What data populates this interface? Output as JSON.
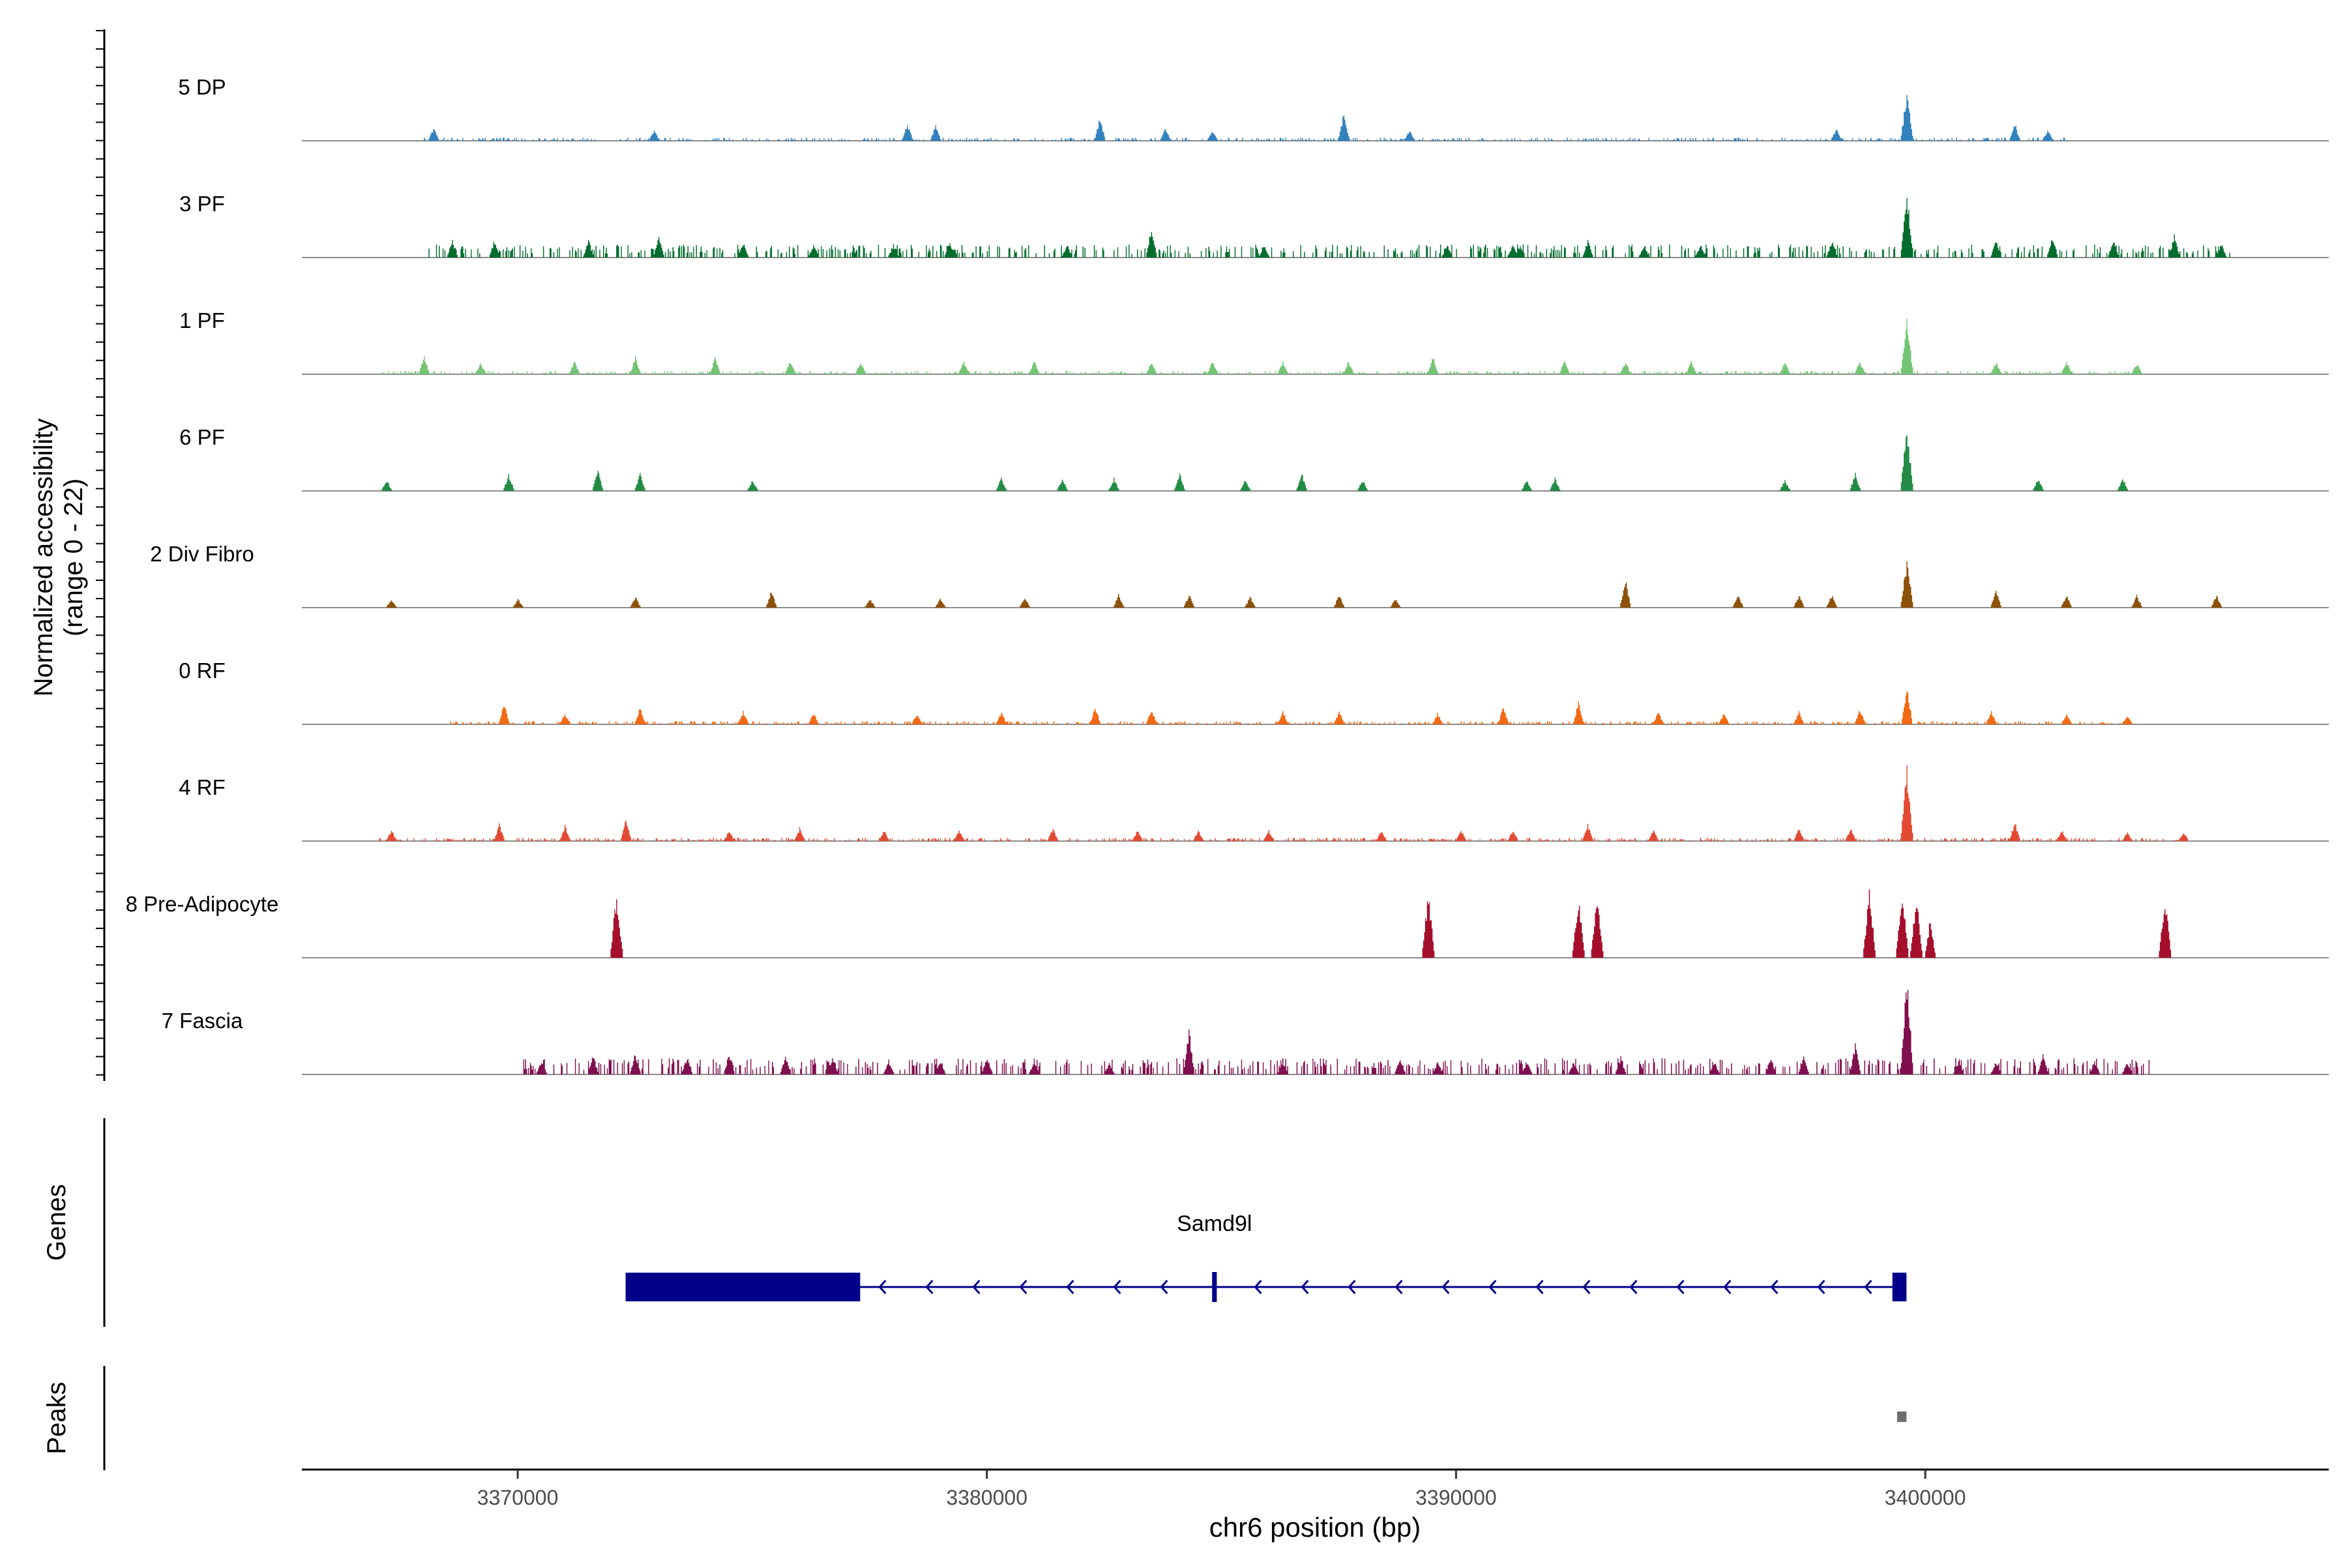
{
  "chart_data": {
    "type": "area",
    "title": "",
    "ylabel_line1": "Normalized accessibility",
    "ylabel_line2": "(range 0 - 22)",
    "xlabel": "chr6 position (bp)",
    "xlim": [
      3365400,
      3408600
    ],
    "ylim": [
      0,
      22
    ],
    "x_ticks": [
      3370000,
      3380000,
      3390000,
      3400000
    ],
    "x_tick_labels": [
      "3370000",
      "3380000",
      "3390000",
      "3400000"
    ],
    "tracks": [
      {
        "name": "5 DP",
        "color": "#3182bd",
        "baseline": 0.5,
        "start": 3368000,
        "end": 3403000,
        "peaks": [
          [
            3368200,
            3
          ],
          [
            3372900,
            2.5
          ],
          [
            3378300,
            4
          ],
          [
            3378900,
            3.5
          ],
          [
            3382400,
            5.5
          ],
          [
            3383800,
            3
          ],
          [
            3384800,
            2.5
          ],
          [
            3387600,
            6.5
          ],
          [
            3389000,
            2.5
          ],
          [
            3398100,
            3
          ],
          [
            3399600,
            11
          ],
          [
            3401900,
            4
          ],
          [
            3402600,
            2.5
          ]
        ]
      },
      {
        "name": "3 PF",
        "color": "#006d2c",
        "baseline": 2,
        "start": 3368000,
        "end": 3406500,
        "peaks": [
          [
            3368600,
            4
          ],
          [
            3369500,
            4
          ],
          [
            3371500,
            4
          ],
          [
            3373000,
            5
          ],
          [
            3374800,
            3.5
          ],
          [
            3376300,
            3
          ],
          [
            3378000,
            3
          ],
          [
            3379200,
            4
          ],
          [
            3381700,
            3
          ],
          [
            3383500,
            7
          ],
          [
            3385900,
            3
          ],
          [
            3389800,
            3
          ],
          [
            3391200,
            3
          ],
          [
            3392800,
            4
          ],
          [
            3394000,
            3
          ],
          [
            3395200,
            3
          ],
          [
            3398000,
            4
          ],
          [
            3399600,
            15
          ],
          [
            3401500,
            4
          ],
          [
            3402700,
            5
          ],
          [
            3404000,
            4
          ],
          [
            3405300,
            5
          ],
          [
            3406300,
            3
          ]
        ]
      },
      {
        "name": "1 PF",
        "color": "#74c476",
        "baseline": 0.5,
        "start": 3367000,
        "end": 3404700,
        "peaks": [
          [
            3368000,
            4
          ],
          [
            3369200,
            2.5
          ],
          [
            3371200,
            3
          ],
          [
            3372500,
            4
          ],
          [
            3374200,
            4
          ],
          [
            3375800,
            3
          ],
          [
            3377300,
            3
          ],
          [
            3379500,
            3
          ],
          [
            3381000,
            3
          ],
          [
            3383500,
            3
          ],
          [
            3384800,
            3
          ],
          [
            3386300,
            3
          ],
          [
            3387700,
            3
          ],
          [
            3389500,
            4
          ],
          [
            3392300,
            3
          ],
          [
            3393600,
            3
          ],
          [
            3395000,
            3
          ],
          [
            3397000,
            3
          ],
          [
            3398600,
            3
          ],
          [
            3399600,
            12
          ],
          [
            3401500,
            3
          ],
          [
            3403000,
            3
          ],
          [
            3404500,
            2.5
          ]
        ]
      },
      {
        "name": "6 PF",
        "color": "#238b45",
        "baseline": 0,
        "start": 3367000,
        "end": 3405000,
        "peaks": [
          [
            3367200,
            2.5
          ],
          [
            3369800,
            4
          ],
          [
            3371700,
            5
          ],
          [
            3372600,
            4
          ],
          [
            3375000,
            2.5
          ],
          [
            3380300,
            3
          ],
          [
            3381600,
            3
          ],
          [
            3382700,
            3
          ],
          [
            3384100,
            4
          ],
          [
            3385500,
            2.5
          ],
          [
            3386700,
            4
          ],
          [
            3388000,
            2.5
          ],
          [
            3391500,
            2.5
          ],
          [
            3392100,
            3
          ],
          [
            3397000,
            2.5
          ],
          [
            3398500,
            4
          ],
          [
            3399600,
            15
          ],
          [
            3402400,
            3
          ],
          [
            3404200,
            3
          ]
        ]
      },
      {
        "name": "2 Div Fibro",
        "color": "#8c510a",
        "baseline": 0,
        "start": 3367000,
        "end": 3406500,
        "peaks": [
          [
            3367300,
            2
          ],
          [
            3370000,
            2
          ],
          [
            3372500,
            2.5
          ],
          [
            3375400,
            4
          ],
          [
            3377500,
            2
          ],
          [
            3379000,
            2
          ],
          [
            3380800,
            2.5
          ],
          [
            3382800,
            3
          ],
          [
            3384300,
            3
          ],
          [
            3385600,
            2.5
          ],
          [
            3387500,
            3
          ],
          [
            3388700,
            2
          ],
          [
            3393600,
            7
          ],
          [
            3396000,
            3
          ],
          [
            3397300,
            3
          ],
          [
            3398000,
            3
          ],
          [
            3399600,
            11
          ],
          [
            3401500,
            4
          ],
          [
            3403000,
            3
          ],
          [
            3404500,
            3
          ],
          [
            3406200,
            3
          ]
        ]
      },
      {
        "name": "0 RF",
        "color": "#f16913",
        "baseline": 0.5,
        "start": 3368500,
        "end": 3404500,
        "peaks": [
          [
            3369700,
            5
          ],
          [
            3371000,
            2.5
          ],
          [
            3372600,
            4
          ],
          [
            3374800,
            3
          ],
          [
            3376300,
            2.5
          ],
          [
            3378500,
            2.5
          ],
          [
            3380300,
            3
          ],
          [
            3382300,
            4
          ],
          [
            3383500,
            3.5
          ],
          [
            3386300,
            3
          ],
          [
            3387500,
            3
          ],
          [
            3389600,
            2.5
          ],
          [
            3391000,
            4
          ],
          [
            3392600,
            5
          ],
          [
            3394300,
            3
          ],
          [
            3395700,
            2.5
          ],
          [
            3397300,
            3
          ],
          [
            3398600,
            3.5
          ],
          [
            3399600,
            9
          ],
          [
            3401400,
            3
          ],
          [
            3403000,
            2.5
          ],
          [
            3404300,
            2
          ]
        ]
      },
      {
        "name": "4 RF",
        "color": "#e34a33",
        "baseline": 0.5,
        "start": 3367000,
        "end": 3405600,
        "peaks": [
          [
            3367300,
            2.5
          ],
          [
            3369600,
            4
          ],
          [
            3371000,
            3.5
          ],
          [
            3372300,
            5.5
          ],
          [
            3374500,
            2.5
          ],
          [
            3376000,
            3
          ],
          [
            3377800,
            2.5
          ],
          [
            3379400,
            2.5
          ],
          [
            3381400,
            3
          ],
          [
            3383200,
            2.5
          ],
          [
            3384500,
            2.5
          ],
          [
            3386000,
            2.5
          ],
          [
            3388400,
            2.5
          ],
          [
            3390100,
            2.5
          ],
          [
            3391200,
            2.5
          ],
          [
            3392800,
            4
          ],
          [
            3394200,
            2.5
          ],
          [
            3397300,
            3
          ],
          [
            3398400,
            3
          ],
          [
            3399600,
            17
          ],
          [
            3401900,
            4.5
          ],
          [
            3402900,
            2.5
          ],
          [
            3404300,
            2
          ],
          [
            3405500,
            2
          ]
        ]
      },
      {
        "name": "8 Pre-Adipocyte",
        "color": "#a50f2c",
        "baseline": 0,
        "start": 3370000,
        "end": 3407000,
        "peaks": [
          [
            3372100,
            15
          ],
          [
            3389400,
            15
          ],
          [
            3392600,
            14
          ],
          [
            3393000,
            14
          ],
          [
            3398800,
            15
          ],
          [
            3399500,
            15
          ],
          [
            3399800,
            14
          ],
          [
            3400100,
            9
          ],
          [
            3405100,
            14
          ]
        ]
      },
      {
        "name": "7 Fascia",
        "color": "#800f4f",
        "baseline": 2.5,
        "start": 3370100,
        "end": 3404800,
        "peaks": [
          [
            3370500,
            3
          ],
          [
            3371600,
            4.5
          ],
          [
            3372500,
            5
          ],
          [
            3373600,
            4
          ],
          [
            3374500,
            5
          ],
          [
            3375700,
            4
          ],
          [
            3376700,
            4
          ],
          [
            3377900,
            3
          ],
          [
            3379000,
            3
          ],
          [
            3380000,
            4
          ],
          [
            3381000,
            3
          ],
          [
            3382600,
            2.5
          ],
          [
            3384300,
            10
          ],
          [
            3386300,
            3
          ],
          [
            3388800,
            4
          ],
          [
            3389600,
            3
          ],
          [
            3391500,
            3
          ],
          [
            3392500,
            3
          ],
          [
            3393500,
            4
          ],
          [
            3395500,
            3
          ],
          [
            3396700,
            4
          ],
          [
            3397400,
            4
          ],
          [
            3398500,
            7
          ],
          [
            3399600,
            22
          ],
          [
            3400700,
            3
          ],
          [
            3401500,
            3
          ],
          [
            3402500,
            4.5
          ],
          [
            3403600,
            3
          ],
          [
            3404300,
            3
          ]
        ]
      }
    ],
    "genes": {
      "label": "Genes",
      "gene_name": "Samd9l",
      "strand": "-",
      "start": 3372300,
      "end": 3399600,
      "exons": [
        [
          3372300,
          3377300
        ],
        [
          3384800,
          3384900
        ],
        [
          3399300,
          3399600
        ]
      ]
    },
    "peaks_track": {
      "label": "Peaks",
      "regions": [
        [
          3399400,
          3399600
        ]
      ]
    }
  }
}
